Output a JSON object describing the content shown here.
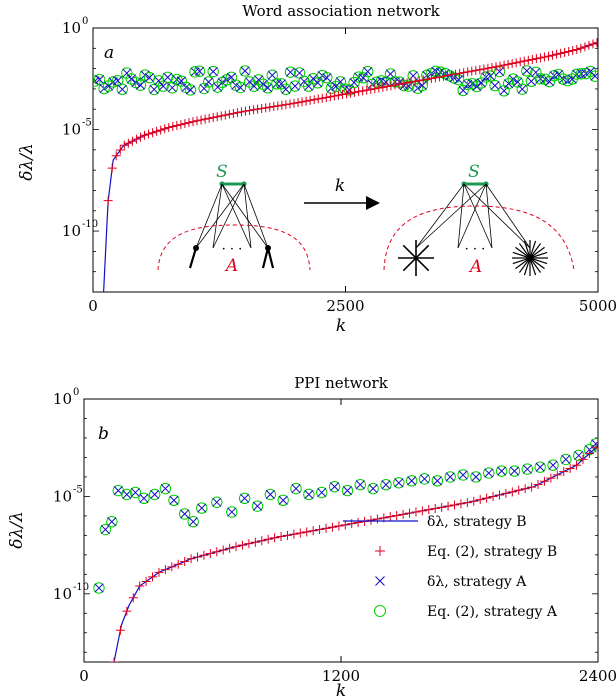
{
  "colors": {
    "red": "#e0001c",
    "blue": "#1010c8",
    "green": "#00d000",
    "greenDark": "#1a9a50",
    "black": "#000000"
  },
  "chart_data": [
    {
      "type": "scatter",
      "title": "Word association network",
      "panel_label": "a",
      "xlabel": "k",
      "ylabel": "δλ/λ",
      "y_scale": "log",
      "xlim": [
        0,
        5000
      ],
      "ylim_log10": [
        -13,
        0
      ],
      "x_ticks": [
        0,
        2500,
        5000
      ],
      "x_tick_labels": [
        "0",
        "2500",
        "5000"
      ],
      "y_ticks_log10": [
        0,
        -5,
        -10
      ],
      "y_tick_labels": [
        "10",
        "10",
        "10"
      ],
      "y_tick_exponents": [
        "0",
        "-5",
        "-10"
      ],
      "x": [
        0,
        100,
        150,
        200,
        300,
        500,
        750,
        1000,
        1500,
        2000,
        2500,
        3000,
        3500,
        4000,
        4500,
        4800,
        5000
      ],
      "curve_log10": [
        -15,
        -13.5,
        -8.5,
        -6.5,
        -5.8,
        -5.3,
        -4.9,
        -4.6,
        -4.1,
        -3.7,
        -3.25,
        -2.8,
        -2.35,
        -1.9,
        -1.4,
        -1.05,
        -0.7
      ],
      "strategyA_base_log10": -2.6,
      "strategyA_spread_log10": 1.0,
      "annotations": {
        "set_top": "S",
        "set_bottom": "A",
        "arrow_label": "k",
        "dots": "· · ·"
      }
    },
    {
      "type": "scatter",
      "title": "PPI network",
      "panel_label": "b",
      "xlabel": "k",
      "ylabel": "δλ/λ",
      "y_scale": "log",
      "xlim": [
        0,
        2400
      ],
      "ylim_log10": [
        -13.5,
        0
      ],
      "x_ticks": [
        0,
        1200,
        2400
      ],
      "x_tick_labels": [
        "0",
        "1200",
        "2400"
      ],
      "y_ticks_log10": [
        0,
        -5,
        -10
      ],
      "y_tick_labels": [
        "10",
        "10",
        "10"
      ],
      "y_tick_exponents": [
        "0",
        "-5",
        "-10"
      ],
      "x": [
        0,
        140,
        175,
        210,
        260,
        350,
        500,
        700,
        900,
        1200,
        1500,
        1800,
        2100,
        2300,
        2400
      ],
      "curve_log10": [
        -15,
        -13.5,
        -11.6,
        -10.6,
        -9.6,
        -8.9,
        -8.2,
        -7.6,
        -7.1,
        -6.5,
        -5.9,
        -5.3,
        -4.5,
        -3.4,
        -2.4
      ],
      "strategyA_points": [
        [
          70,
          -9.7
        ],
        [
          100,
          -6.7
        ],
        [
          130,
          -6.3
        ],
        [
          160,
          -4.7
        ],
        [
          200,
          -4.9
        ],
        [
          240,
          -4.8
        ],
        [
          280,
          -5.1
        ],
        [
          330,
          -4.9
        ],
        [
          380,
          -4.6
        ],
        [
          420,
          -5.2
        ],
        [
          470,
          -5.9
        ],
        [
          510,
          -6.3
        ],
        [
          550,
          -5.6
        ],
        [
          620,
          -5.3
        ],
        [
          690,
          -5.8
        ],
        [
          750,
          -5.1
        ],
        [
          810,
          -5.5
        ],
        [
          870,
          -4.9
        ],
        [
          930,
          -5.2
        ],
        [
          990,
          -4.6
        ],
        [
          1050,
          -4.9
        ],
        [
          1110,
          -4.8
        ],
        [
          1170,
          -4.5
        ],
        [
          1230,
          -4.7
        ],
        [
          1290,
          -4.4
        ],
        [
          1350,
          -4.6
        ],
        [
          1410,
          -4.4
        ],
        [
          1470,
          -4.3
        ],
        [
          1530,
          -4.2
        ],
        [
          1590,
          -4.1
        ],
        [
          1650,
          -4.2
        ],
        [
          1710,
          -4.0
        ],
        [
          1770,
          -3.9
        ],
        [
          1830,
          -4.0
        ],
        [
          1890,
          -3.8
        ],
        [
          1950,
          -3.7
        ],
        [
          2010,
          -3.7
        ],
        [
          2070,
          -3.6
        ],
        [
          2130,
          -3.5
        ],
        [
          2190,
          -3.4
        ],
        [
          2250,
          -3.1
        ],
        [
          2310,
          -2.9
        ],
        [
          2360,
          -2.6
        ],
        [
          2390,
          -2.3
        ]
      ],
      "legend": [
        {
          "label": "δλ, strategy B",
          "marker": "line",
          "color": "#1010c8"
        },
        {
          "label": "Eq. (2), strategy B",
          "marker": "plus",
          "color": "#e0001c"
        },
        {
          "label": "δλ, strategy A",
          "marker": "x",
          "color": "#1010c8"
        },
        {
          "label": "Eq. (2), strategy A",
          "marker": "circle",
          "color": "#00d000"
        }
      ],
      "legend_position": "bottom-right"
    }
  ]
}
